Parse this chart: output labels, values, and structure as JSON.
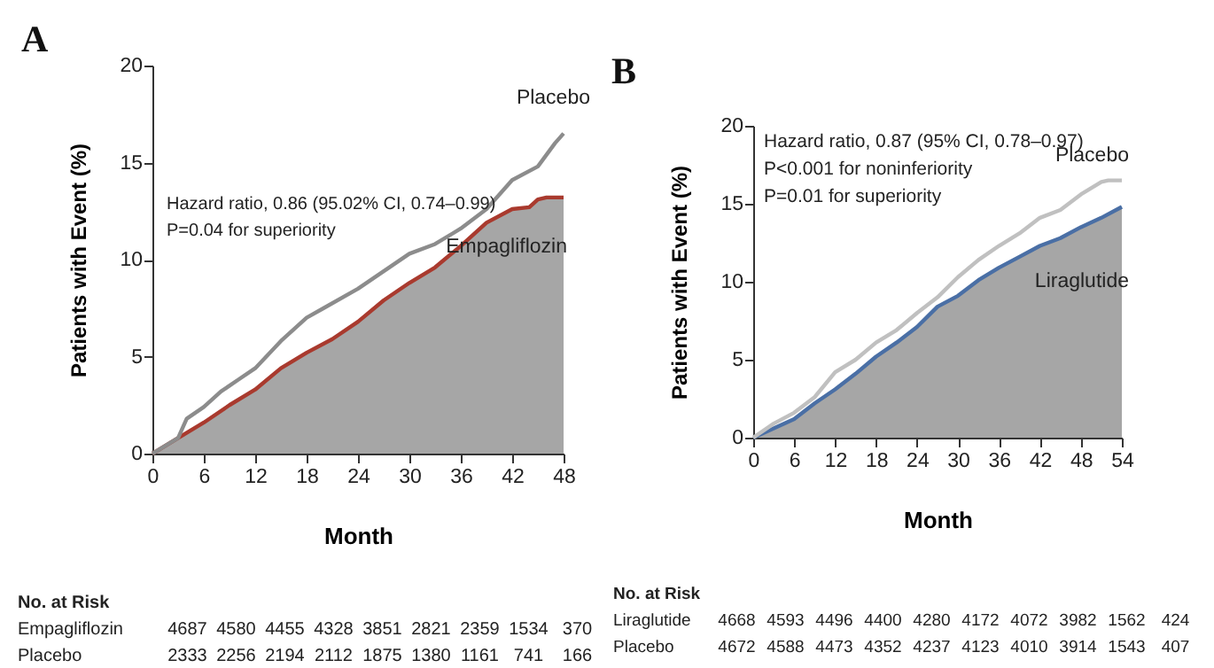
{
  "chart_data": [
    {
      "type": "line",
      "title": "A",
      "xlabel": "Month",
      "ylabel": "Patients with Event (%)",
      "xlim": [
        0,
        48
      ],
      "xticks": [
        0,
        6,
        12,
        18,
        24,
        30,
        36,
        42,
        48
      ],
      "ylim": [
        0,
        20
      ],
      "yticks": [
        0,
        5,
        10,
        15,
        20
      ],
      "x": [
        0,
        3,
        6,
        9,
        12,
        15,
        18,
        21,
        24,
        27,
        30,
        33,
        36,
        39,
        42,
        44,
        45,
        46,
        48
      ],
      "series": [
        {
          "name": "Empagliflozin",
          "type": "area",
          "color": "#a93a2e",
          "values": [
            0,
            0.8,
            1.6,
            2.5,
            3.3,
            4.4,
            5.2,
            5.9,
            6.8,
            7.9,
            8.8,
            9.6,
            10.7,
            11.9,
            12.6,
            12.7,
            13.1,
            13.2,
            13.2
          ]
        },
        {
          "name": "Placebo",
          "type": "line",
          "color": "#8c8c8c",
          "x": [
            0,
            3,
            4,
            6,
            8,
            10,
            12,
            15,
            18,
            20,
            24,
            27,
            30,
            33,
            36,
            39,
            42,
            45,
            47,
            48
          ],
          "values": [
            0,
            0.8,
            1.8,
            2.4,
            3.2,
            3.8,
            4.4,
            5.8,
            7.0,
            7.5,
            8.5,
            9.4,
            10.3,
            10.8,
            11.6,
            12.6,
            14.1,
            14.8,
            16.0,
            16.5
          ]
        }
      ],
      "annotations": [
        "Hazard ratio, 0.86 (95.02% CI, 0.74–0.99)",
        "P=0.04 for superiority",
        "No. at Risk",
        "Empagliflozin 4687 4580 4455 4328 3851 2821 2359 1534 370",
        "Placebo 2333 2256 2194 2112 1875 1380 1161 741 166"
      ]
    },
    {
      "type": "line",
      "title": "B",
      "xlabel": "Month",
      "ylabel": "Patients with Event (%)",
      "xlim": [
        0,
        54
      ],
      "xticks": [
        0,
        6,
        12,
        18,
        24,
        30,
        36,
        42,
        48,
        54
      ],
      "ylim": [
        0,
        20
      ],
      "yticks": [
        0,
        5,
        10,
        15,
        20
      ],
      "x": [
        0,
        3,
        6,
        9,
        12,
        15,
        18,
        21,
        24,
        27,
        30,
        33,
        36,
        39,
        42,
        45,
        48,
        51,
        54
      ],
      "series": [
        {
          "name": "Liraglutide",
          "type": "area",
          "color": "#4a6fa5",
          "values": [
            0,
            0.6,
            1.2,
            2.2,
            3.1,
            4.1,
            5.2,
            6.1,
            7.1,
            8.4,
            9.1,
            10.1,
            10.9,
            11.6,
            12.3,
            12.8,
            13.5,
            14.1,
            14.8
          ]
        },
        {
          "name": "Placebo",
          "type": "line",
          "color": "#c0c0c0",
          "x": [
            0,
            3,
            6,
            9,
            12,
            15,
            18,
            21,
            24,
            27,
            30,
            33,
            36,
            39,
            42,
            45,
            48,
            51,
            52,
            54
          ],
          "values": [
            0,
            0.9,
            1.6,
            2.6,
            4.2,
            5.0,
            6.1,
            6.9,
            8.0,
            9.0,
            10.3,
            11.4,
            12.3,
            13.1,
            14.1,
            14.6,
            15.6,
            16.4,
            16.5,
            16.5
          ]
        }
      ],
      "annotations": [
        "Hazard ratio, 0.87 (95% CI, 0.78–0.97)",
        "P<0.001 for noninferiority",
        "P=0.01 for superiority",
        "No. at Risk",
        "Liraglutide 4668 4593 4496 4400 4280 4172 4072 3982 1562 424",
        "Placebo 4672 4588 4473 4352 4237 4123 4010 3914 1543 407"
      ]
    }
  ]
}
